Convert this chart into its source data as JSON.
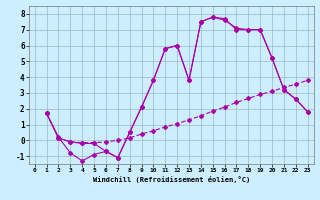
{
  "xlabel": "Windchill (Refroidissement éolien,°C)",
  "bg_color": "#cceeff",
  "line_color": "#aa00aa",
  "grid_color": "#99bbbb",
  "xlim": [
    -0.5,
    23.5
  ],
  "ylim": [
    -1.5,
    8.5
  ],
  "xticks": [
    0,
    1,
    2,
    3,
    4,
    5,
    6,
    7,
    8,
    9,
    10,
    11,
    12,
    13,
    14,
    15,
    16,
    17,
    18,
    19,
    20,
    21,
    22,
    23
  ],
  "yticks": [
    -1,
    0,
    1,
    2,
    3,
    4,
    5,
    6,
    7,
    8
  ],
  "line1_x": [
    1,
    2,
    3,
    4,
    5,
    6,
    7,
    8,
    9,
    10,
    11,
    12,
    13,
    14,
    15,
    16,
    17,
    18,
    19,
    20,
    21,
    22,
    23
  ],
  "line1_y": [
    1.7,
    0.2,
    -0.8,
    -1.3,
    -0.9,
    -0.7,
    -1.1,
    0.5,
    2.1,
    3.8,
    5.8,
    6.0,
    3.8,
    7.5,
    7.8,
    7.6,
    7.1,
    7.0,
    7.0,
    5.2,
    3.2,
    2.6,
    1.8
  ],
  "line2_x": [
    1,
    2,
    3,
    4,
    5,
    6,
    7,
    8,
    9,
    10,
    11,
    12,
    13,
    14,
    15,
    16,
    17,
    18,
    19,
    20,
    21,
    22,
    23
  ],
  "line2_y": [
    1.7,
    0.15,
    -0.1,
    -0.15,
    -0.15,
    -0.1,
    0.0,
    0.15,
    0.4,
    0.6,
    0.85,
    1.05,
    1.3,
    1.55,
    1.85,
    2.1,
    2.4,
    2.65,
    2.9,
    3.1,
    3.35,
    3.55,
    3.8
  ],
  "line3_x": [
    1,
    2,
    3,
    4,
    5,
    6,
    7,
    8,
    9,
    10,
    11,
    12,
    13,
    14,
    15,
    16,
    17,
    18,
    19,
    20,
    21,
    22,
    23
  ],
  "line3_y": [
    1.7,
    0.15,
    -0.1,
    -0.2,
    -0.2,
    -0.7,
    -1.1,
    0.5,
    2.1,
    3.8,
    5.8,
    6.0,
    3.8,
    7.5,
    7.8,
    7.7,
    7.0,
    7.0,
    7.0,
    5.2,
    3.2,
    2.6,
    1.8
  ]
}
